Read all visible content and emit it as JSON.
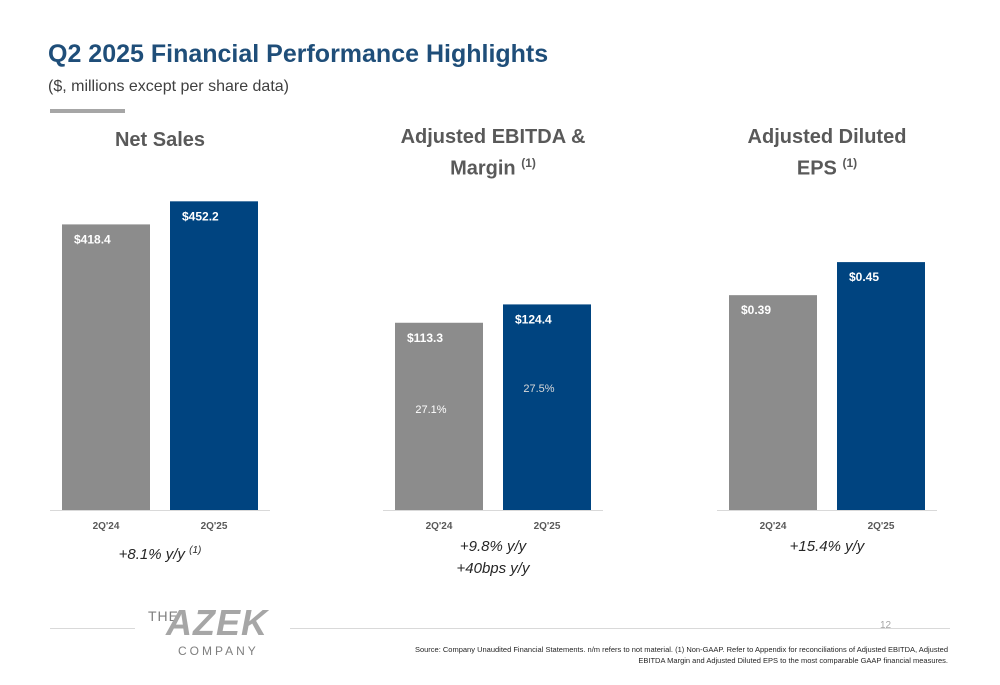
{
  "title": "Q2 2025 Financial Performance Highlights",
  "subtitle": "($, millions except per share data)",
  "colors": {
    "prior": "#8c8c8c",
    "current": "#004480",
    "title": "#1f4e79"
  },
  "charts": [
    {
      "title": "Net Sales",
      "title_sup": "",
      "growth_lines": [
        "+8.1% y/y",
        ""
      ],
      "growth_sup": "(1)"
    },
    {
      "title": "Adjusted EBITDA &",
      "title_line2": "Margin",
      "title_sup": "(1)",
      "growth_lines": [
        "+9.8% y/y",
        "+40bps y/y"
      ],
      "growth_sup": ""
    },
    {
      "title": "Adjusted Diluted",
      "title_line2": "EPS",
      "title_sup": "(1)",
      "growth_lines": [
        "+15.4% y/y",
        ""
      ],
      "growth_sup": ""
    }
  ],
  "chart_data": [
    {
      "type": "bar",
      "title": "Net Sales",
      "categories": [
        "2Q'24",
        "2Q'25"
      ],
      "values": [
        418.4,
        452.2
      ],
      "labels": [
        "$418.4",
        "$452.2"
      ],
      "ylim": [
        0,
        460
      ]
    },
    {
      "type": "bar",
      "title": "Adjusted EBITDA & Margin (1)",
      "categories": [
        "2Q'24",
        "2Q'25"
      ],
      "values": [
        113.3,
        124.4
      ],
      "labels": [
        "$113.3",
        "$124.4"
      ],
      "margins": [
        "27.1%",
        "27.5%"
      ],
      "ylim": [
        0,
        190
      ]
    },
    {
      "type": "bar",
      "title": "Adjusted Diluted EPS (1)",
      "categories": [
        "2Q'24",
        "2Q'25"
      ],
      "values": [
        0.39,
        0.45
      ],
      "labels": [
        "$0.39",
        "$0.45"
      ],
      "ylim": [
        0,
        0.57
      ]
    }
  ],
  "footer": {
    "logo_the": "THE",
    "logo_azek": "AZEK",
    "logo_company": "COMPANY",
    "page": "12",
    "source_line1": "Source: Company Unaudited Financial Statements. n/m refers to not material. (1) Non-GAAP. Refer to Appendix for reconciliations of Adjusted EBITDA, Adjusted",
    "source_line2": "EBITDA Margin and Adjusted Diluted EPS to the most comparable GAAP financial measures."
  }
}
